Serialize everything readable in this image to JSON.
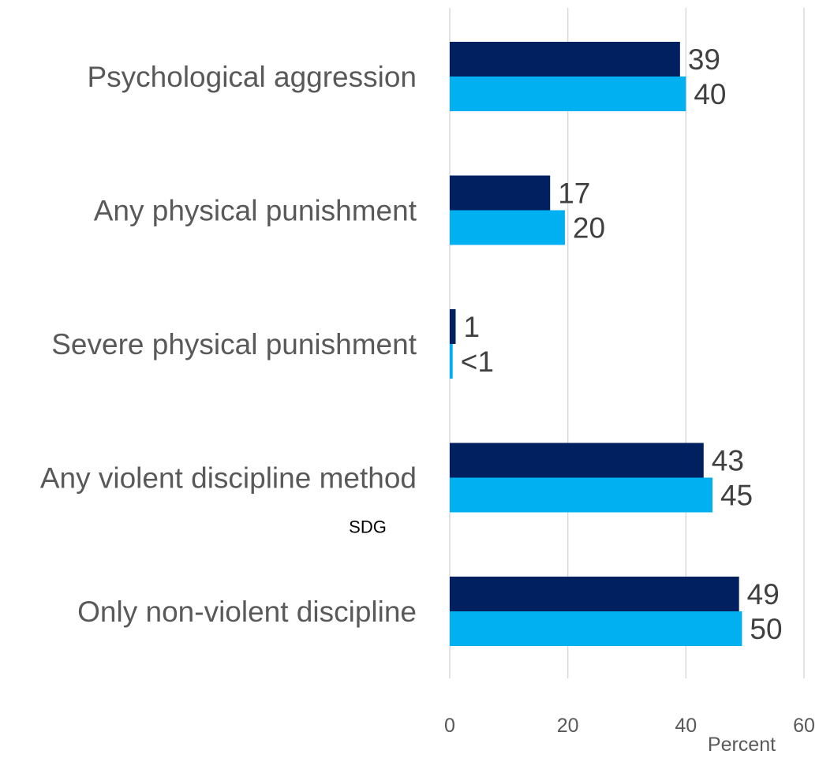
{
  "chart_data": {
    "type": "bar",
    "orientation": "horizontal",
    "categories": [
      "Psychological aggression",
      "Any physical punishment",
      "Severe physical punishment",
      "Any violent discipline method",
      "Only non-violent discipline"
    ],
    "category_sublabels": [
      "",
      "",
      "",
      "SDG",
      ""
    ],
    "series": [
      {
        "color": "#002060",
        "values": [
          39,
          17,
          1,
          43,
          49
        ],
        "labels": [
          "39",
          "17",
          "1",
          "43",
          "49"
        ]
      },
      {
        "color": "#00B0F0",
        "values": [
          40,
          19.5,
          0.5,
          44.5,
          49.5
        ],
        "labels": [
          "40",
          "20",
          "<1",
          "45",
          "50"
        ]
      }
    ],
    "xlabel": "Percent",
    "xlim": [
      0,
      60
    ],
    "xticks": [
      "0",
      "20",
      "40",
      "60"
    ],
    "grid": true,
    "legend": "none"
  }
}
